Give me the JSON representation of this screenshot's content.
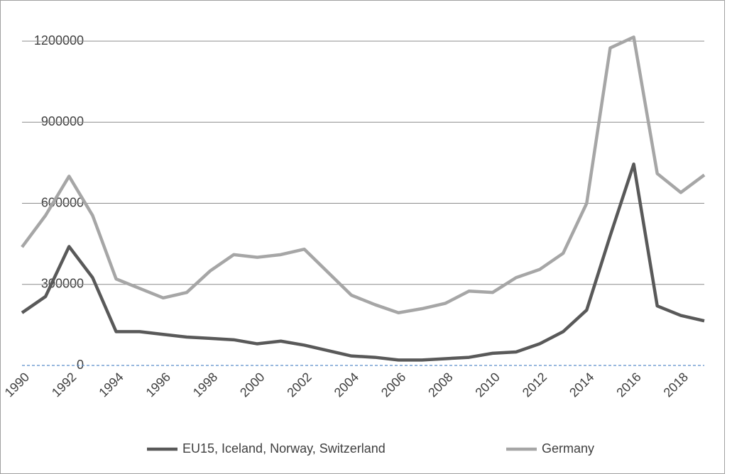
{
  "chart_data": {
    "type": "line",
    "x": [
      1990,
      1991,
      1992,
      1993,
      1994,
      1995,
      1996,
      1997,
      1998,
      1999,
      2000,
      2001,
      2002,
      2003,
      2004,
      2005,
      2006,
      2007,
      2008,
      2009,
      2010,
      2011,
      2012,
      2013,
      2014,
      2015,
      2016,
      2017,
      2018,
      2019
    ],
    "series": [
      {
        "name": "EU15, Iceland, Norway, Switzerland",
        "color": "#595959",
        "values": [
          195000,
          255000,
          440000,
          325000,
          125000,
          125000,
          115000,
          105000,
          100000,
          95000,
          80000,
          90000,
          75000,
          55000,
          35000,
          30000,
          20000,
          20000,
          25000,
          30000,
          45000,
          50000,
          80000,
          125000,
          205000,
          480000,
          745000,
          220000,
          185000,
          165000
        ]
      },
      {
        "name": "Germany",
        "color": "#a6a6a6",
        "values": [
          438000,
          555000,
          700000,
          555000,
          320000,
          285000,
          250000,
          270000,
          350000,
          410000,
          400000,
          410000,
          430000,
          345000,
          260000,
          225000,
          195000,
          210000,
          230000,
          275000,
          270000,
          325000,
          355000,
          415000,
          600000,
          1175000,
          1215000,
          710000,
          640000,
          705000
        ]
      }
    ],
    "xlim": [
      1990,
      2019
    ],
    "xticks": [
      1990,
      1992,
      1994,
      1996,
      1998,
      2000,
      2002,
      2004,
      2006,
      2008,
      2010,
      2012,
      2014,
      2016,
      2018
    ],
    "ylim": [
      0,
      1200000
    ],
    "yticks": [
      0,
      300000,
      600000,
      900000,
      1200000
    ],
    "grid": true,
    "legend": "bottom"
  }
}
